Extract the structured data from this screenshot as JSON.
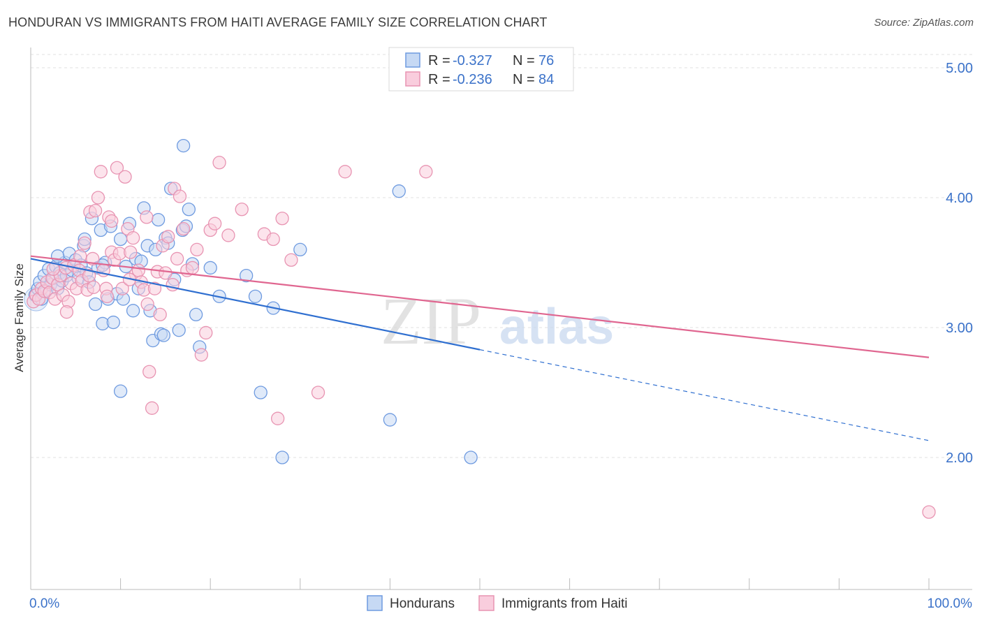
{
  "chart_data": {
    "type": "scatter",
    "title": "HONDURAN VS IMMIGRANTS FROM HAITI AVERAGE FAMILY SIZE CORRELATION CHART",
    "source": "Source: ZipAtlas.com",
    "watermark": {
      "zip": "ZIP",
      "atlas": "atlas"
    },
    "xlabel": "",
    "ylabel": "Average Family Size",
    "xlim": [
      0,
      100
    ],
    "ylim": [
      1.05,
      5.1
    ],
    "x_tick_labels": [
      {
        "value": 0,
        "label": "0.0%"
      },
      {
        "value": 100,
        "label": "100.0%"
      }
    ],
    "y_ticks": [
      {
        "value": 5.0,
        "label": "5.00"
      },
      {
        "value": 4.0,
        "label": "4.00"
      },
      {
        "value": 3.0,
        "label": "3.00"
      },
      {
        "value": 2.0,
        "label": "2.00"
      }
    ],
    "grid": true,
    "legend_top": [
      {
        "r_label": "R =",
        "r_value": "-0.327",
        "n_label": "N =",
        "n_value": "76"
      },
      {
        "r_label": "R =",
        "r_value": "-0.236",
        "n_label": "N =",
        "n_value": "84"
      }
    ],
    "series": [
      {
        "name": "Hondurans",
        "color": "#6f9be0",
        "fill": "#c6d9f4",
        "line_color": "#2f6fd0",
        "regression": {
          "x0": 0,
          "y0": 3.53,
          "x1": 50,
          "y1": 2.83,
          "dash_to_x": 100,
          "dash_to_y": 2.13
        },
        "points": [
          [
            0.5,
            3.25
          ],
          [
            0.8,
            3.3
          ],
          [
            1.0,
            3.35
          ],
          [
            1.2,
            3.22
          ],
          [
            1.5,
            3.4
          ],
          [
            1.7,
            3.28
          ],
          [
            2.0,
            3.45
          ],
          [
            2.2,
            3.33
          ],
          [
            2.5,
            3.38
          ],
          [
            2.8,
            3.47
          ],
          [
            3.0,
            3.3
          ],
          [
            3.2,
            3.42
          ],
          [
            3.5,
            3.36
          ],
          [
            3.8,
            3.5
          ],
          [
            4.0,
            3.4
          ],
          [
            4.3,
            3.57
          ],
          [
            4.6,
            3.44
          ],
          [
            5.0,
            3.52
          ],
          [
            5.3,
            3.38
          ],
          [
            5.6,
            3.48
          ],
          [
            5.9,
            3.63
          ],
          [
            6.2,
            3.42
          ],
          [
            6.5,
            3.35
          ],
          [
            6.8,
            3.84
          ],
          [
            7.2,
            3.18
          ],
          [
            7.5,
            3.46
          ],
          [
            7.8,
            3.75
          ],
          [
            8.0,
            3.03
          ],
          [
            8.3,
            3.5
          ],
          [
            8.6,
            3.22
          ],
          [
            8.9,
            3.78
          ],
          [
            9.2,
            3.04
          ],
          [
            9.6,
            3.26
          ],
          [
            10.0,
            3.68
          ],
          [
            10.3,
            3.22
          ],
          [
            10.6,
            3.47
          ],
          [
            11.0,
            3.8
          ],
          [
            11.4,
            3.13
          ],
          [
            11.7,
            3.53
          ],
          [
            12.0,
            3.3
          ],
          [
            12.3,
            3.51
          ],
          [
            12.6,
            3.92
          ],
          [
            13.0,
            3.63
          ],
          [
            13.3,
            3.13
          ],
          [
            13.6,
            2.9
          ],
          [
            13.9,
            3.6
          ],
          [
            14.2,
            3.83
          ],
          [
            14.5,
            2.95
          ],
          [
            14.8,
            2.94
          ],
          [
            15.0,
            3.69
          ],
          [
            15.3,
            3.65
          ],
          [
            15.6,
            4.07
          ],
          [
            16.0,
            3.37
          ],
          [
            16.5,
            2.98
          ],
          [
            16.9,
            3.75
          ],
          [
            17.3,
            3.78
          ],
          [
            17.0,
            4.4
          ],
          [
            17.6,
            3.91
          ],
          [
            18.0,
            3.49
          ],
          [
            18.4,
            3.1
          ],
          [
            18.8,
            2.85
          ],
          [
            20.0,
            3.46
          ],
          [
            21.0,
            3.24
          ],
          [
            24.0,
            3.4
          ],
          [
            25.0,
            3.24
          ],
          [
            25.6,
            2.5
          ],
          [
            27.0,
            3.15
          ],
          [
            28.0,
            2.0
          ],
          [
            30.0,
            3.6
          ],
          [
            40.0,
            2.29
          ],
          [
            41.0,
            4.05
          ],
          [
            49.0,
            2.0
          ],
          [
            10.0,
            2.51
          ],
          [
            8.0,
            3.48
          ],
          [
            6.0,
            3.68
          ],
          [
            3.0,
            3.55
          ]
        ]
      },
      {
        "name": "Immigrants from Haiti",
        "color": "#e894b2",
        "fill": "#f9cddd",
        "line_color": "#e06690",
        "regression": {
          "x0": 0,
          "y0": 3.55,
          "x1": 100,
          "y1": 2.77
        },
        "points": [
          [
            0.3,
            3.2
          ],
          [
            0.6,
            3.25
          ],
          [
            0.9,
            3.22
          ],
          [
            1.2,
            3.3
          ],
          [
            1.5,
            3.28
          ],
          [
            1.8,
            3.35
          ],
          [
            2.1,
            3.27
          ],
          [
            2.4,
            3.38
          ],
          [
            2.7,
            3.22
          ],
          [
            3.0,
            3.33
          ],
          [
            3.3,
            3.4
          ],
          [
            3.6,
            3.25
          ],
          [
            3.9,
            3.46
          ],
          [
            4.2,
            3.2
          ],
          [
            4.5,
            3.34
          ],
          [
            4.8,
            3.48
          ],
          [
            5.1,
            3.3
          ],
          [
            5.4,
            3.44
          ],
          [
            5.7,
            3.36
          ],
          [
            6.0,
            3.65
          ],
          [
            6.3,
            3.29
          ],
          [
            6.6,
            3.89
          ],
          [
            6.9,
            3.53
          ],
          [
            7.2,
            3.9
          ],
          [
            7.5,
            4.0
          ],
          [
            7.8,
            4.2
          ],
          [
            8.1,
            3.44
          ],
          [
            8.4,
            3.3
          ],
          [
            8.7,
            3.85
          ],
          [
            9.0,
            3.58
          ],
          [
            9.3,
            3.52
          ],
          [
            9.6,
            4.23
          ],
          [
            9.9,
            3.57
          ],
          [
            10.2,
            3.3
          ],
          [
            10.5,
            4.16
          ],
          [
            10.8,
            3.76
          ],
          [
            11.1,
            3.58
          ],
          [
            11.4,
            3.69
          ],
          [
            11.7,
            3.41
          ],
          [
            12.0,
            3.44
          ],
          [
            12.3,
            3.35
          ],
          [
            12.6,
            3.29
          ],
          [
            12.9,
            3.85
          ],
          [
            13.2,
            2.66
          ],
          [
            13.5,
            2.38
          ],
          [
            13.8,
            3.3
          ],
          [
            14.1,
            3.43
          ],
          [
            14.4,
            3.1
          ],
          [
            14.7,
            3.63
          ],
          [
            15.0,
            3.42
          ],
          [
            15.3,
            3.7
          ],
          [
            16.0,
            4.07
          ],
          [
            16.3,
            3.53
          ],
          [
            16.6,
            4.01
          ],
          [
            17.0,
            3.76
          ],
          [
            17.4,
            3.44
          ],
          [
            18.0,
            3.46
          ],
          [
            18.5,
            3.6
          ],
          [
            19.0,
            2.79
          ],
          [
            19.5,
            2.96
          ],
          [
            20.0,
            3.75
          ],
          [
            20.5,
            3.8
          ],
          [
            21.0,
            4.27
          ],
          [
            22.0,
            3.71
          ],
          [
            23.5,
            3.91
          ],
          [
            26.0,
            3.72
          ],
          [
            27.0,
            3.68
          ],
          [
            27.5,
            2.3
          ],
          [
            28.0,
            3.84
          ],
          [
            29.0,
            3.52
          ],
          [
            32.0,
            2.5
          ],
          [
            35.0,
            4.2
          ],
          [
            44.0,
            4.2
          ],
          [
            100.0,
            1.58
          ],
          [
            5.5,
            3.55
          ],
          [
            7.0,
            3.31
          ],
          [
            9.0,
            3.82
          ],
          [
            11.0,
            3.37
          ],
          [
            13.0,
            3.18
          ],
          [
            4.0,
            3.12
          ],
          [
            2.5,
            3.45
          ],
          [
            6.5,
            3.4
          ],
          [
            8.5,
            3.24
          ],
          [
            15.8,
            3.33
          ]
        ]
      }
    ]
  }
}
